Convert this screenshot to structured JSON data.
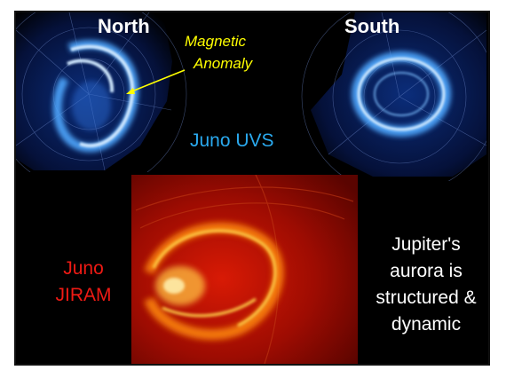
{
  "north_label": "North",
  "south_label": "South",
  "anomaly_label": {
    "line1": "Magnetic",
    "line2": "Anomaly"
  },
  "uvs_label": "Juno UVS",
  "jiram_label": {
    "line1": "Juno",
    "line2": "JIRAM"
  },
  "caption": {
    "line1": "Jupiter's",
    "line2": "aurora is",
    "line3": "structured &",
    "line4": "dynamic"
  },
  "colors": {
    "background": "#000000",
    "uv_aurora": "#3aa6ff",
    "uvs_text": "#2aa9ee",
    "anomaly_text": "#ffff00",
    "jiram_text": "#ee1a14",
    "infrared_aurora": "#ff6a00"
  }
}
